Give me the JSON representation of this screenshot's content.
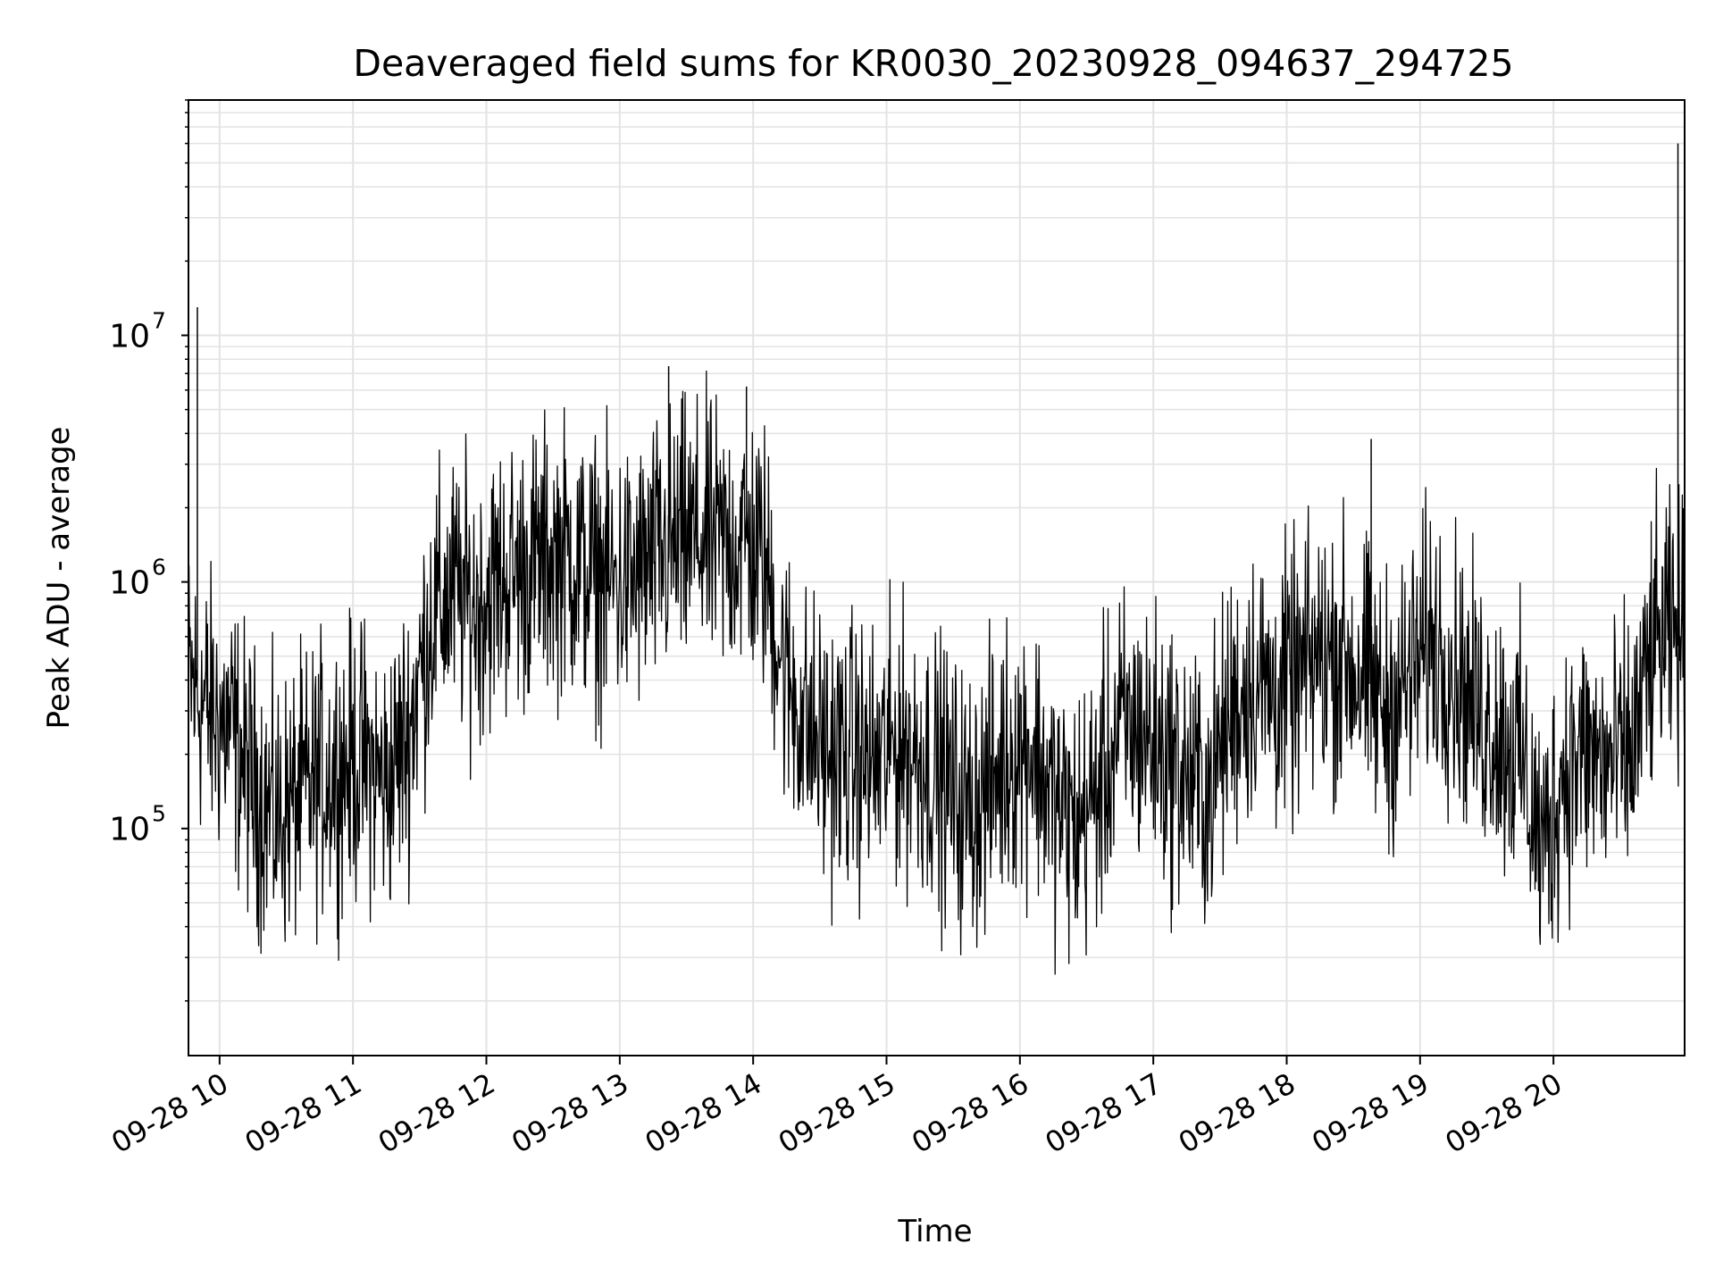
{
  "chart_data": {
    "type": "line",
    "title": "Deaveraged field sums for KR0030_20230928_094637_294725",
    "xlabel": "Time",
    "ylabel": "Peak ADU - average",
    "y_scale": "log",
    "ylim": [
      12000,
      90000000
    ],
    "xlim": [
      "2023-09-28 09:46",
      "2023-09-28 20:59"
    ],
    "grid": true,
    "line_color": "#000000",
    "grid_color": "#e3e3e3",
    "x_tick_labels": [
      "09-28 10",
      "09-28 11",
      "09-28 12",
      "09-28 13",
      "09-28 14",
      "09-28 15",
      "09-28 16",
      "09-28 17",
      "09-28 18",
      "09-28 19",
      "09-28 20"
    ],
    "y_ticks": [
      {
        "base": "10",
        "exp": "5",
        "value": 100000
      },
      {
        "base": "10",
        "exp": "6",
        "value": 1000000
      },
      {
        "base": "10",
        "exp": "7",
        "value": 10000000
      }
    ],
    "series": [
      {
        "x": [
          "2023-09-28 09:46",
          "2023-09-28 09:55",
          "2023-09-28 10:05",
          "2023-09-28 10:15",
          "2023-09-28 10:25",
          "2023-09-28 10:35",
          "2023-09-28 10:45",
          "2023-09-28 10:55",
          "2023-09-28 11:05",
          "2023-09-28 11:15",
          "2023-09-28 11:25",
          "2023-09-28 11:35",
          "2023-09-28 11:45",
          "2023-09-28 11:55",
          "2023-09-28 12:05",
          "2023-09-28 12:15",
          "2023-09-28 12:25",
          "2023-09-28 12:35",
          "2023-09-28 12:45",
          "2023-09-28 12:55",
          "2023-09-28 13:05",
          "2023-09-28 13:15",
          "2023-09-28 13:25",
          "2023-09-28 13:35",
          "2023-09-28 13:45",
          "2023-09-28 13:55",
          "2023-09-28 14:05",
          "2023-09-28 14:15",
          "2023-09-28 14:25",
          "2023-09-28 14:35",
          "2023-09-28 14:45",
          "2023-09-28 14:55",
          "2023-09-28 15:05",
          "2023-09-28 15:15",
          "2023-09-28 15:25",
          "2023-09-28 15:35",
          "2023-09-28 15:45",
          "2023-09-28 15:55",
          "2023-09-28 16:05",
          "2023-09-28 16:15",
          "2023-09-28 16:25",
          "2023-09-28 16:35",
          "2023-09-28 16:45",
          "2023-09-28 16:55",
          "2023-09-28 17:05",
          "2023-09-28 17:15",
          "2023-09-28 17:25",
          "2023-09-28 17:35",
          "2023-09-28 17:45",
          "2023-09-28 17:55",
          "2023-09-28 18:05",
          "2023-09-28 18:15",
          "2023-09-28 18:25",
          "2023-09-28 18:35",
          "2023-09-28 18:45",
          "2023-09-28 18:55",
          "2023-09-28 19:05",
          "2023-09-28 19:15",
          "2023-09-28 19:25",
          "2023-09-28 19:35",
          "2023-09-28 19:45",
          "2023-09-28 19:55",
          "2023-09-28 20:05",
          "2023-09-28 20:15",
          "2023-09-28 20:25",
          "2023-09-28 20:35",
          "2023-09-28 20:45",
          "2023-09-28 20:55"
        ],
        "y": [
          400000,
          300000,
          250000,
          150000,
          110000,
          130000,
          160000,
          180000,
          190000,
          150000,
          250000,
          700000,
          900000,
          800000,
          1000000,
          1100000,
          1200000,
          1300000,
          1100000,
          1000000,
          1000000,
          1200000,
          1400000,
          1500000,
          1400000,
          1500000,
          1200000,
          400000,
          250000,
          200000,
          200000,
          180000,
          220000,
          200000,
          160000,
          120000,
          140000,
          200000,
          220000,
          130000,
          100000,
          140000,
          250000,
          250000,
          200000,
          160000,
          140000,
          300000,
          400000,
          350000,
          400000,
          500000,
          500000,
          400000,
          300000,
          400000,
          600000,
          450000,
          300000,
          250000,
          200000,
          80000,
          180000,
          200000,
          180000,
          200000,
          550000,
          600000
        ]
      }
    ],
    "spikes": [
      {
        "x": "2023-09-28 09:50",
        "y": 13000000
      },
      {
        "x": "2023-09-28 13:22",
        "y": 7500000
      },
      {
        "x": "2023-09-28 13:57",
        "y": 6200000
      },
      {
        "x": "2023-09-28 18:38",
        "y": 3800000
      },
      {
        "x": "2023-09-28 20:56",
        "y": 60000000
      }
    ]
  }
}
